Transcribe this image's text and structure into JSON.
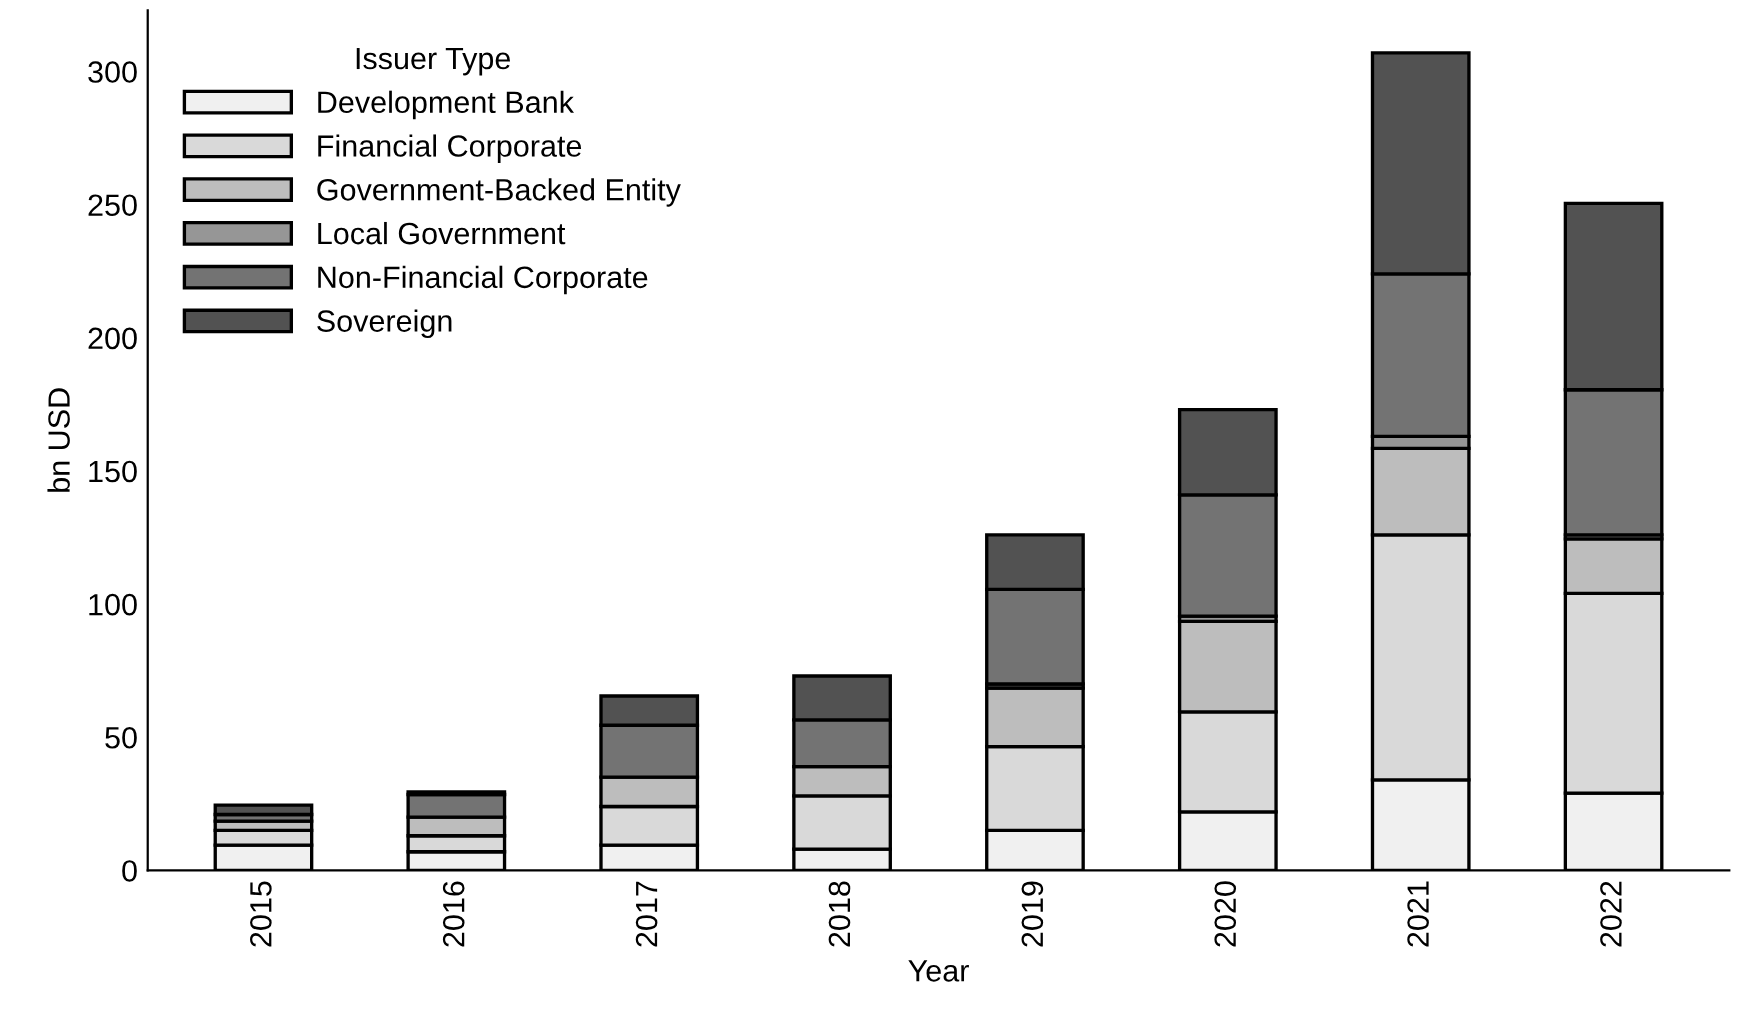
{
  "chart_data": {
    "type": "bar",
    "stacked": true,
    "xlabel": "Year",
    "ylabel": "bn USD",
    "legend_title": "Issuer Type",
    "legend": "top left",
    "grid": false,
    "categories": [
      "2015",
      "2016",
      "2017",
      "2018",
      "2019",
      "2020",
      "2021",
      "2022"
    ],
    "ylim": [
      0,
      323
    ],
    "yticks": [
      0,
      50,
      100,
      150,
      200,
      250,
      300
    ],
    "series": [
      {
        "name": "Development Bank",
        "color": "#f0f0f0",
        "values": [
          9.5,
          7,
          9.5,
          8,
          15,
          22,
          34,
          29
        ]
      },
      {
        "name": "Financial Corporate",
        "color": "#d9d9d9",
        "values": [
          5.5,
          6,
          14.5,
          20,
          31.5,
          37.5,
          92,
          75
        ]
      },
      {
        "name": "Government-Backed Entity",
        "color": "#bdbdbd",
        "values": [
          3.5,
          7,
          11,
          11,
          22,
          34,
          32.5,
          20.5
        ]
      },
      {
        "name": "Local Government",
        "color": "#969696",
        "values": [
          null,
          null,
          null,
          null,
          1.5,
          2,
          4.5,
          1.5
        ]
      },
      {
        "name": "Non-Financial Corporate",
        "color": "#737373",
        "values": [
          2.5,
          8.5,
          19.5,
          17.5,
          35.5,
          45.5,
          61,
          54.5
        ]
      },
      {
        "name": "Sovereign",
        "color": "#525252",
        "values": [
          3.5,
          1,
          11,
          16.5,
          20.5,
          32,
          83,
          70
        ]
      }
    ]
  }
}
